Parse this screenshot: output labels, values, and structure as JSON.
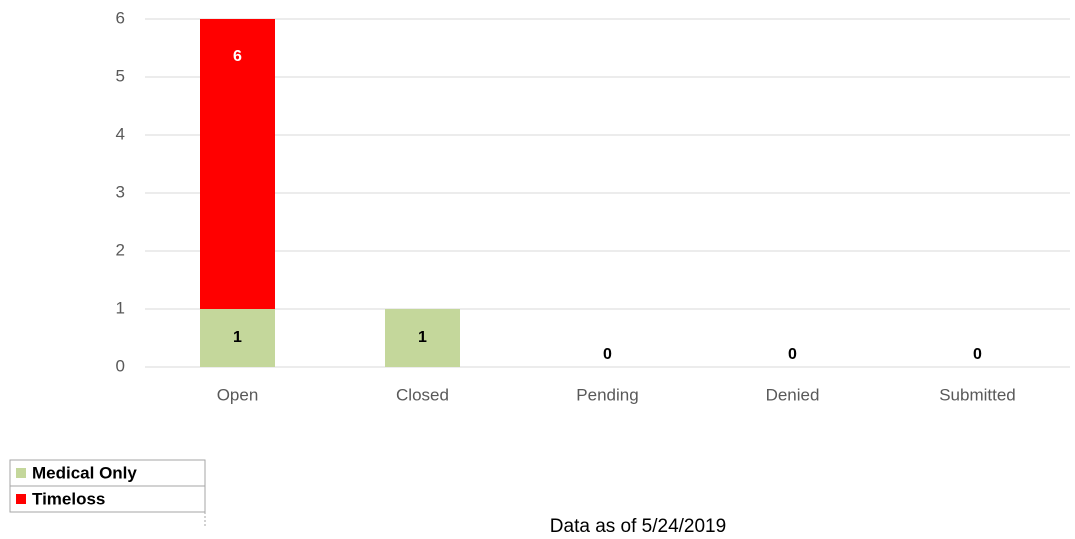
{
  "chart_data": {
    "type": "bar",
    "overlap": true,
    "categories": [
      "Open",
      "Closed",
      "Pending",
      "Denied",
      "Submitted"
    ],
    "series": [
      {
        "name": "Medical Only",
        "color": "#c4d79b",
        "values": [
          1,
          1,
          0,
          0,
          0
        ]
      },
      {
        "name": "Timeloss",
        "color": "#ff0000",
        "values": [
          6,
          0,
          0,
          0,
          0
        ]
      }
    ],
    "ylim": [
      0,
      6
    ],
    "yticks": [
      0,
      1,
      2,
      3,
      4,
      5,
      6
    ],
    "grid": true,
    "note": "Data as of 5/24/2019"
  }
}
